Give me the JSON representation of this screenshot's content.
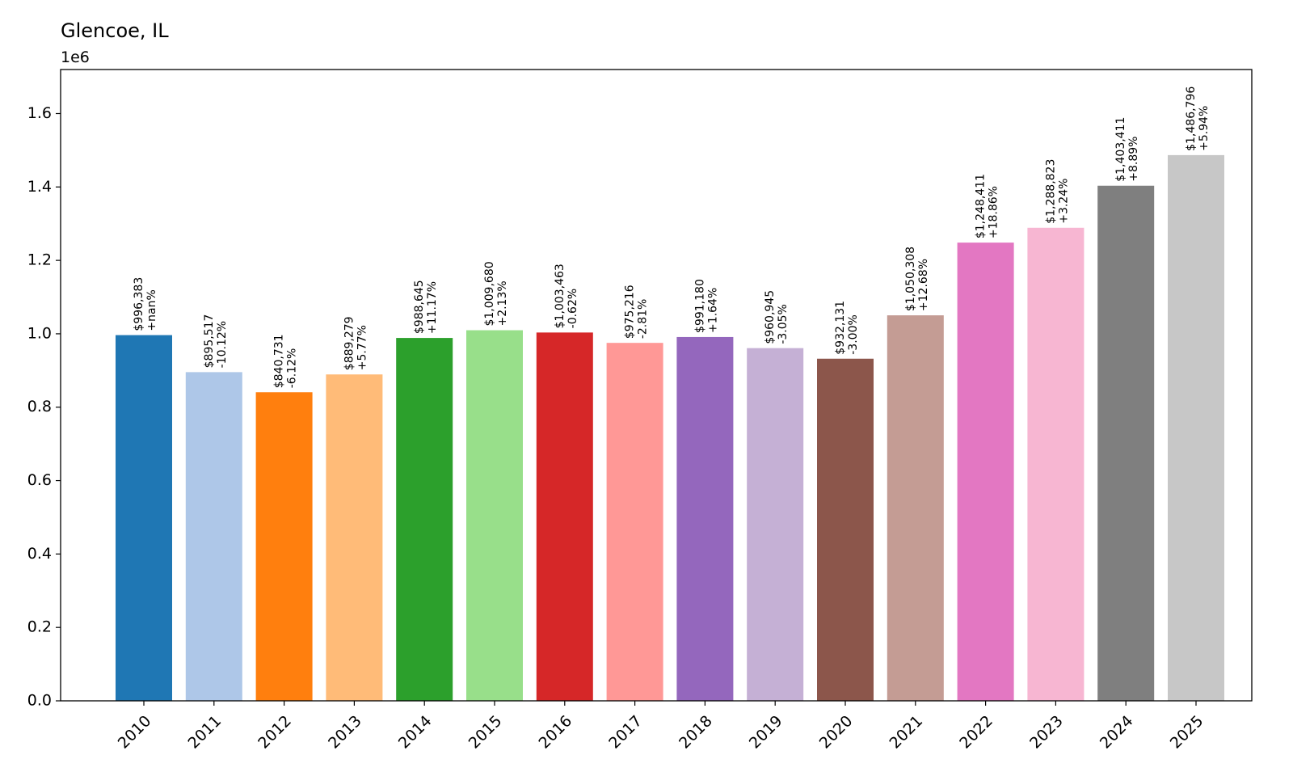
{
  "chart_data": {
    "type": "bar",
    "title": "Glencoe, IL",
    "xlabel": "",
    "ylabel": "",
    "y_offset_label": "1e6",
    "ylim": [
      0,
      1.72
    ],
    "y_ticks": [
      0.0,
      0.2,
      0.4,
      0.6,
      0.8,
      1.0,
      1.2,
      1.4,
      1.6
    ],
    "y_tick_labels": [
      "0.0",
      "0.2",
      "0.4",
      "0.6",
      "0.8",
      "1.0",
      "1.2",
      "1.4",
      "1.6"
    ],
    "categories": [
      "2010",
      "2011",
      "2012",
      "2013",
      "2014",
      "2015",
      "2016",
      "2017",
      "2018",
      "2019",
      "2020",
      "2021",
      "2022",
      "2023",
      "2024",
      "2025"
    ],
    "values": [
      996383,
      895517,
      840731,
      889279,
      988645,
      1009680,
      1003463,
      975216,
      991180,
      960945,
      932131,
      1050308,
      1248411,
      1288823,
      1403411,
      1486796
    ],
    "value_labels": [
      "$996,383",
      "$895,517",
      "$840,731",
      "$889,279",
      "$988,645",
      "$1,009,680",
      "$1,003,463",
      "$975,216",
      "$991,180",
      "$960,945",
      "$932,131",
      "$1,050,308",
      "$1,248,411",
      "$1,288,823",
      "$1,403,411",
      "$1,486,796"
    ],
    "change_labels": [
      "+nan%",
      "-10.12%",
      "-6.12%",
      "+5.77%",
      "+11.17%",
      "+2.13%",
      "-0.62%",
      "-2.81%",
      "+1.64%",
      "-3.05%",
      "-3.00%",
      "+12.68%",
      "+18.86%",
      "+3.24%",
      "+8.89%",
      "+5.94%"
    ],
    "colors": [
      "#1f77b4",
      "#aec7e8",
      "#ff7f0e",
      "#ffbb78",
      "#2ca02c",
      "#98df8a",
      "#d62728",
      "#ff9896",
      "#9467bd",
      "#c5b0d5",
      "#8c564b",
      "#c49c94",
      "#e377c2",
      "#f7b6d2",
      "#7f7f7f",
      "#c7c7c7"
    ],
    "grid": false,
    "legend": "none"
  }
}
